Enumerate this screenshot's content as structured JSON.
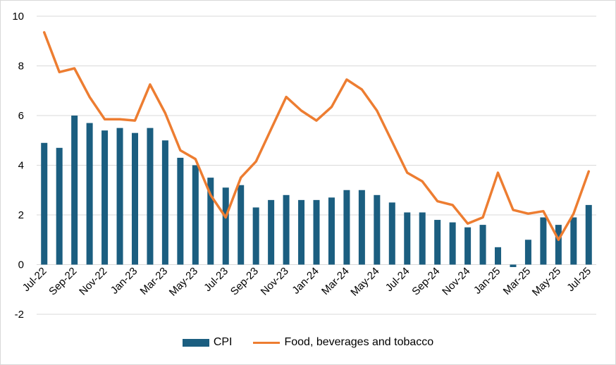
{
  "chart_data": {
    "type": "bar",
    "categories": [
      "Jul-22",
      "Aug-22",
      "Sep-22",
      "Oct-22",
      "Nov-22",
      "Dec-22",
      "Jan-23",
      "Feb-23",
      "Mar-23",
      "Apr-23",
      "May-23",
      "Jun-23",
      "Jul-23",
      "Aug-23",
      "Sep-23",
      "Oct-23",
      "Nov-23",
      "Dec-23",
      "Jan-24",
      "Feb-24",
      "Mar-24",
      "Apr-24",
      "May-24",
      "Jun-24",
      "Jul-24",
      "Aug-24",
      "Sep-24",
      "Oct-24",
      "Nov-24",
      "Dec-24",
      "Jan-25",
      "Feb-25",
      "Mar-25",
      "Apr-25",
      "May-25",
      "Jun-25",
      "Jul-25"
    ],
    "x_tick_labels": [
      "Jul-22",
      "Sep-22",
      "Nov-22",
      "Jan-23",
      "Mar-23",
      "May-23",
      "Jul-23",
      "Sep-23",
      "Nov-23",
      "Jan-24",
      "Mar-24",
      "May-24",
      "Jul-24",
      "Sep-24",
      "Nov-24",
      "Jan-25",
      "Mar-25",
      "May-25",
      "Jul-25"
    ],
    "y_ticks": [
      "-2",
      "0",
      "2",
      "4",
      "6",
      "8",
      "10"
    ],
    "ylim": [
      -2,
      10
    ],
    "grid": "horizontal",
    "legend_position": "bottom",
    "series": [
      {
        "name": "CPI",
        "type": "bar",
        "color": "#1b5e80",
        "values": [
          4.9,
          4.7,
          6.0,
          5.7,
          5.4,
          5.5,
          5.3,
          5.5,
          5.0,
          4.3,
          4.0,
          3.5,
          3.1,
          3.2,
          2.3,
          2.6,
          2.8,
          2.6,
          2.6,
          2.7,
          3.0,
          3.0,
          2.8,
          2.5,
          2.1,
          2.1,
          1.8,
          1.7,
          1.5,
          1.6,
          0.7,
          -0.1,
          1.0,
          1.9,
          1.6,
          1.9,
          2.4
        ]
      },
      {
        "name": "Food, beverages and tobacco",
        "type": "line",
        "color": "#ed7d31",
        "values": [
          9.35,
          7.75,
          7.9,
          6.75,
          5.85,
          5.85,
          5.8,
          7.25,
          6.1,
          4.6,
          4.25,
          2.8,
          1.9,
          3.5,
          4.15,
          5.45,
          6.75,
          6.2,
          5.8,
          6.35,
          7.45,
          7.05,
          6.2,
          4.95,
          3.7,
          3.35,
          2.55,
          2.4,
          1.65,
          1.9,
          3.7,
          2.2,
          2.05,
          2.15,
          1.0,
          2.05,
          3.75
        ]
      }
    ]
  }
}
